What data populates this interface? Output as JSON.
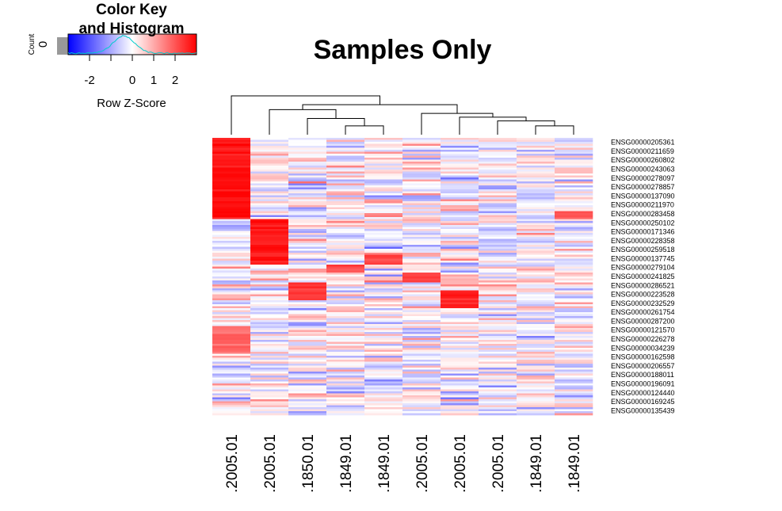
{
  "title": "Samples Only",
  "color_key": {
    "title_line1": "Color Key",
    "title_line2": "and Histogram",
    "xlabel": "Row Z-Score",
    "ylabel": "Count",
    "y_tick": "0",
    "ticks": [
      "-2",
      "0",
      "1",
      "2"
    ],
    "range": [
      -3.0,
      3.0
    ],
    "colors": {
      "low": "#0000ff",
      "mid": "#ffffff",
      "high": "#ff0000",
      "histogram": "#00e5ee"
    }
  },
  "chart_data": {
    "type": "heatmap",
    "title": "Samples Only",
    "color_scale": "Row Z-Score",
    "value_range": [
      -3,
      3
    ],
    "columns": [
      ".2005.01",
      ".2005.01",
      ".1850.01",
      ".1849.01",
      ".1849.01",
      ".2005.01",
      ".2005.01",
      ".2005.01",
      ".1849.01",
      ".1849.01"
    ],
    "row_labels": [
      "ENSG00000205361",
      "ENSG00000211659",
      "ENSG00000260802",
      "ENSG00000243063",
      "ENSG00000278097",
      "ENSG00000278857",
      "ENSG00000137090",
      "ENSG00000211970",
      "ENSG00000283458",
      "ENSG00000250102",
      "ENSG00000171346",
      "ENSG00000228358",
      "ENSG00000259518",
      "ENSG00000137745",
      "ENSG00000279104",
      "ENSG00000241825",
      "ENSG00000286521",
      "ENSG00000223528",
      "ENSG00000232529",
      "ENSG00000261754",
      "ENSG00000287200",
      "ENSG00000121570",
      "ENSG00000226278",
      "ENSG00000034239",
      "ENSG00000162598",
      "ENSG00000206557",
      "ENSG00000188011",
      "ENSG00000196091",
      "ENSG00000124440",
      "ENSG00000169245",
      "ENSG00000135439"
    ],
    "blocks": [
      {
        "col": 0,
        "z": 3.0,
        "rows": [
          0,
          8
        ]
      },
      {
        "col": 1,
        "z": 3.0,
        "rows": [
          9,
          13
        ]
      },
      {
        "col": 2,
        "z": 2.6,
        "rows": [
          16,
          17
        ]
      },
      {
        "col": 3,
        "z": 2.4,
        "rows": [
          14,
          14
        ]
      },
      {
        "col": 4,
        "z": 2.4,
        "rows": [
          13,
          13
        ]
      },
      {
        "col": 5,
        "z": 2.6,
        "rows": [
          15,
          15
        ]
      },
      {
        "col": 6,
        "z": 2.8,
        "rows": [
          17,
          18
        ]
      },
      {
        "col": 9,
        "z": 2.2,
        "rows": [
          8,
          8
        ]
      },
      {
        "col": 0,
        "z": 2.0,
        "rows": [
          21,
          23
        ]
      }
    ],
    "dendrogram": {
      "merges": [
        {
          "a": 3,
          "b": 4,
          "height": 0.35
        },
        {
          "a": 8,
          "b": 9,
          "height": 0.35
        },
        {
          "a": 7,
          "b": "m2",
          "height": 0.55
        },
        {
          "a": 2,
          "b": "m1",
          "height": 0.65
        },
        {
          "a": 6,
          "b": "m3",
          "height": 0.7
        },
        {
          "a": 5,
          "b": "m5",
          "height": 0.85
        },
        {
          "a": 1,
          "b": "m4",
          "height": 1.0
        },
        {
          "a": "m7",
          "b": "m6",
          "height": 1.2
        },
        {
          "a": 0,
          "b": "m8",
          "height": 1.55
        }
      ]
    }
  }
}
